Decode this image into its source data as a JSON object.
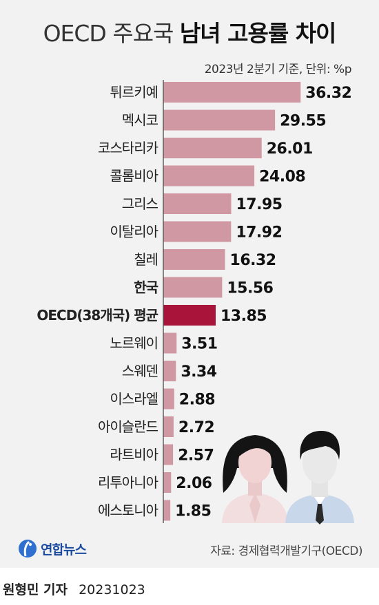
{
  "header": {
    "title_prefix": "OECD 주요국",
    "title_main": "남녀 고용률 차이",
    "subtitle": "2023년 2분기 기준, 단위: %p"
  },
  "colors": {
    "bar": "#d098a3",
    "highlight": "#a8143a",
    "axis": "#555555"
  },
  "chart_data": {
    "type": "bar",
    "orientation": "horizontal",
    "title": "OECD 주요국 남녀 고용률 차이",
    "subtitle": "2023년 2분기 기준, 단위: %p",
    "categories": [
      "튀르키예",
      "멕시코",
      "코스타리카",
      "콜롬비아",
      "그리스",
      "이탈리아",
      "칠레",
      "한국",
      "OECD(38개국) 평균",
      "노르웨이",
      "스웨덴",
      "이스라엘",
      "아이슬란드",
      "라트비아",
      "리투아니아",
      "에스토니아"
    ],
    "values": [
      36.32,
      29.55,
      26.01,
      24.08,
      17.95,
      17.92,
      16.32,
      15.56,
      13.85,
      3.51,
      3.34,
      2.88,
      2.72,
      2.57,
      2.06,
      1.85
    ],
    "value_labels": [
      "36.32",
      "29.55",
      "26.01",
      "24.08",
      "17.95",
      "17.92",
      "16.32",
      "15.56",
      "13.85",
      "3.51",
      "3.34",
      "2.88",
      "2.72",
      "2.57",
      "2.06",
      "1.85"
    ],
    "bold_categories": [
      "한국",
      "OECD(38개국) 평균"
    ],
    "highlight_category": "OECD(38개국) 평균",
    "xlim": [
      0,
      37
    ],
    "grid": false,
    "legend": "none"
  },
  "footer": {
    "logo_text": "연합뉴스",
    "source": "자료: 경제협력개발기구(OECD)",
    "reporter": "원형민 기자",
    "date": "20231023"
  },
  "icons": [
    "yonhap-logo-icon",
    "woman-icon",
    "man-icon"
  ]
}
